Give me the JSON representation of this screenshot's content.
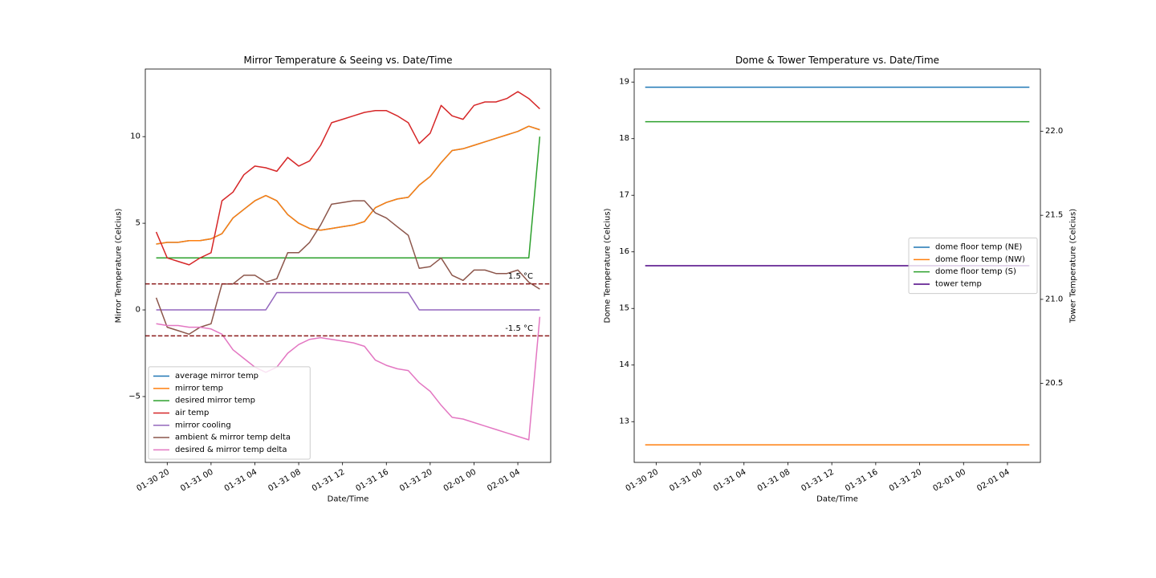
{
  "chart_data": [
    {
      "type": "line",
      "title": "Mirror Temperature & Seeing vs. Date/Time",
      "xlabel": "Date/Time",
      "ylabel": "Mirror Temperature (Celcius)",
      "x": [
        "01-30 19",
        "01-30 20",
        "01-30 21",
        "01-30 22",
        "01-30 23",
        "01-31 00",
        "01-31 01",
        "01-31 02",
        "01-31 03",
        "01-31 04",
        "01-31 05",
        "01-31 06",
        "01-31 07",
        "01-31 08",
        "01-31 09",
        "01-31 10",
        "01-31 11",
        "01-31 12",
        "01-31 13",
        "01-31 14",
        "01-31 15",
        "01-31 16",
        "01-31 17",
        "01-31 18",
        "01-31 19",
        "01-31 20",
        "01-31 21",
        "01-31 22",
        "01-31 23",
        "02-01 00",
        "02-01 01",
        "02-01 02",
        "02-01 03",
        "02-01 04",
        "02-01 05",
        "02-01 06"
      ],
      "xlim": [
        "01-30 18",
        "02-01 07"
      ],
      "xticks": [
        "01-30 20",
        "01-31 00",
        "01-31 04",
        "01-31 08",
        "01-31 12",
        "01-31 16",
        "01-31 20",
        "02-01 00",
        "02-01 04"
      ],
      "ylim": [
        -8.8,
        13.9
      ],
      "yticks": [
        {
          "value": -5,
          "label": "−5"
        },
        0,
        5,
        10
      ],
      "legend": "lower left",
      "series": [
        {
          "name": "average mirror temp",
          "color": "#1f77b4",
          "values": [
            3.8,
            3.9,
            3.9,
            4.0,
            4.0,
            4.1,
            4.4,
            5.3,
            5.8,
            6.3,
            6.6,
            6.3,
            5.5,
            5.0,
            4.7,
            4.6,
            4.7,
            4.8,
            4.9,
            5.1,
            5.9,
            6.2,
            6.4,
            6.5,
            7.2,
            7.7,
            8.5,
            9.2,
            9.3,
            9.5,
            9.7,
            9.9,
            10.1,
            10.3,
            10.6,
            10.4
          ]
        },
        {
          "name": "mirror temp",
          "color": "#ff7f0e",
          "values": [
            3.8,
            3.9,
            3.9,
            4.0,
            4.0,
            4.1,
            4.4,
            5.3,
            5.8,
            6.3,
            6.6,
            6.3,
            5.5,
            5.0,
            4.7,
            4.6,
            4.7,
            4.8,
            4.9,
            5.1,
            5.9,
            6.2,
            6.4,
            6.5,
            7.2,
            7.7,
            8.5,
            9.2,
            9.3,
            9.5,
            9.7,
            9.9,
            10.1,
            10.3,
            10.6,
            10.4
          ]
        },
        {
          "name": "desired mirror temp",
          "color": "#2ca02c",
          "values": [
            3,
            3,
            3,
            3,
            3,
            3,
            3,
            3,
            3,
            3,
            3,
            3,
            3,
            3,
            3,
            3,
            3,
            3,
            3,
            3,
            3,
            3,
            3,
            3,
            3,
            3,
            3,
            3,
            3,
            3,
            3,
            3,
            3,
            3,
            3,
            10
          ]
        },
        {
          "name": "air temp",
          "color": "#d62728",
          "values": [
            4.5,
            3.0,
            2.8,
            2.6,
            3.0,
            3.3,
            6.3,
            6.8,
            7.8,
            8.3,
            8.2,
            8.0,
            8.8,
            8.3,
            8.6,
            9.5,
            10.8,
            11.0,
            11.2,
            11.4,
            11.5,
            11.5,
            11.2,
            10.8,
            9.6,
            10.2,
            11.8,
            11.2,
            11.0,
            11.8,
            12.0,
            12.0,
            12.2,
            12.6,
            12.2,
            11.6
          ]
        },
        {
          "name": "mirror cooling",
          "color": "#9467bd",
          "values": [
            0,
            0,
            0,
            0,
            0,
            0,
            0,
            0,
            0,
            0,
            0,
            1,
            1,
            1,
            1,
            1,
            1,
            1,
            1,
            1,
            1,
            1,
            1,
            1,
            0,
            0,
            0,
            0,
            0,
            0,
            0,
            0,
            0,
            0,
            0,
            0
          ]
        },
        {
          "name": "ambient & mirror temp delta",
          "color": "#8c564b",
          "values": [
            0.7,
            -1.0,
            -1.2,
            -1.4,
            -1.0,
            -0.8,
            1.5,
            1.5,
            2.0,
            2.0,
            1.6,
            1.8,
            3.3,
            3.3,
            3.9,
            4.9,
            6.1,
            6.2,
            6.3,
            6.3,
            5.6,
            5.3,
            4.8,
            4.3,
            2.4,
            2.5,
            3.0,
            2.0,
            1.7,
            2.3,
            2.3,
            2.1,
            2.1,
            2.3,
            1.6,
            1.2
          ]
        },
        {
          "name": "desired & mirror temp delta",
          "color": "#e377c2",
          "values": [
            -0.8,
            -0.9,
            -0.9,
            -1.0,
            -1.0,
            -1.1,
            -1.4,
            -2.3,
            -2.8,
            -3.3,
            -3.6,
            -3.3,
            -2.5,
            -2.0,
            -1.7,
            -1.6,
            -1.7,
            -1.8,
            -1.9,
            -2.1,
            -2.9,
            -3.2,
            -3.4,
            -3.5,
            -4.2,
            -4.7,
            -5.5,
            -6.2,
            -6.3,
            -6.5,
            -6.7,
            -6.9,
            -7.1,
            -7.3,
            -7.5,
            -0.4
          ]
        }
      ],
      "hline_color": "#8b1a1a",
      "hlines": [
        {
          "value": 1.5,
          "label": "1.5 °C"
        },
        {
          "value": -1.5,
          "label": "-1.5 °C"
        }
      ]
    },
    {
      "type": "line",
      "title": "Dome & Tower Temperature vs. Date/Time",
      "xlabel": "Date/Time",
      "ylabel": "Dome Temperature (Celcius)",
      "y2label": "Tower Temperature (Celcius)",
      "x": [
        "01-30 19",
        "02-01 06"
      ],
      "xlim": [
        "01-30 18",
        "02-01 07"
      ],
      "xticks": [
        "01-30 20",
        "01-31 00",
        "01-31 04",
        "01-31 08",
        "01-31 12",
        "01-31 16",
        "01-31 20",
        "02-01 00",
        "02-01 04"
      ],
      "ylim": [
        12.28,
        19.23
      ],
      "yticks": [
        13,
        14,
        15,
        16,
        17,
        18,
        19
      ],
      "y2lim": [
        20.03,
        22.37
      ],
      "y2ticks": [
        {
          "value": 20.5,
          "label": "20.5"
        },
        {
          "value": 21,
          "label": "21.0"
        },
        {
          "value": 21.5,
          "label": "21.5"
        },
        {
          "value": 22,
          "label": "22.0"
        }
      ],
      "legend": "center right",
      "series": [
        {
          "name": "dome floor temp (NE)",
          "color": "#1f77b4",
          "values": [
            18.91,
            18.91
          ]
        },
        {
          "name": "dome floor temp (NW)",
          "color": "#ff7f0e",
          "values": [
            12.59,
            12.59
          ]
        },
        {
          "name": "dome floor temp (S)",
          "color": "#2ca02c",
          "values": [
            18.3,
            18.3
          ]
        },
        {
          "name": "tower temp",
          "color": "#4b0082",
          "axis": "y2",
          "values": [
            21.2,
            21.2
          ]
        }
      ]
    }
  ]
}
